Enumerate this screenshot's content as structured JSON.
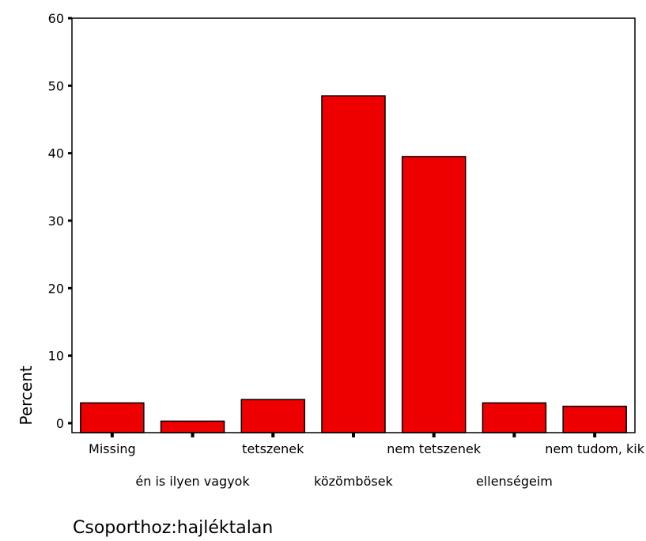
{
  "chart_data": {
    "type": "bar",
    "categories": [
      "Missing",
      "én is ilyen vagyok",
      "tetszenek",
      "közömbösek",
      "nem tetszenek",
      "ellenségeim",
      "nem tudom, kik"
    ],
    "values": [
      3.0,
      0.3,
      3.5,
      48.5,
      39.5,
      3.0,
      2.5
    ],
    "title": "",
    "xlabel": "Csoporthoz:hajléktalan",
    "ylabel": "Percent",
    "ylim": [
      0,
      60
    ],
    "yticks": [
      0,
      10,
      20,
      30,
      40,
      50,
      60
    ],
    "grid": false,
    "legend": "none",
    "bar_color": "#ee0000",
    "bar_edge_color": "#000000"
  }
}
